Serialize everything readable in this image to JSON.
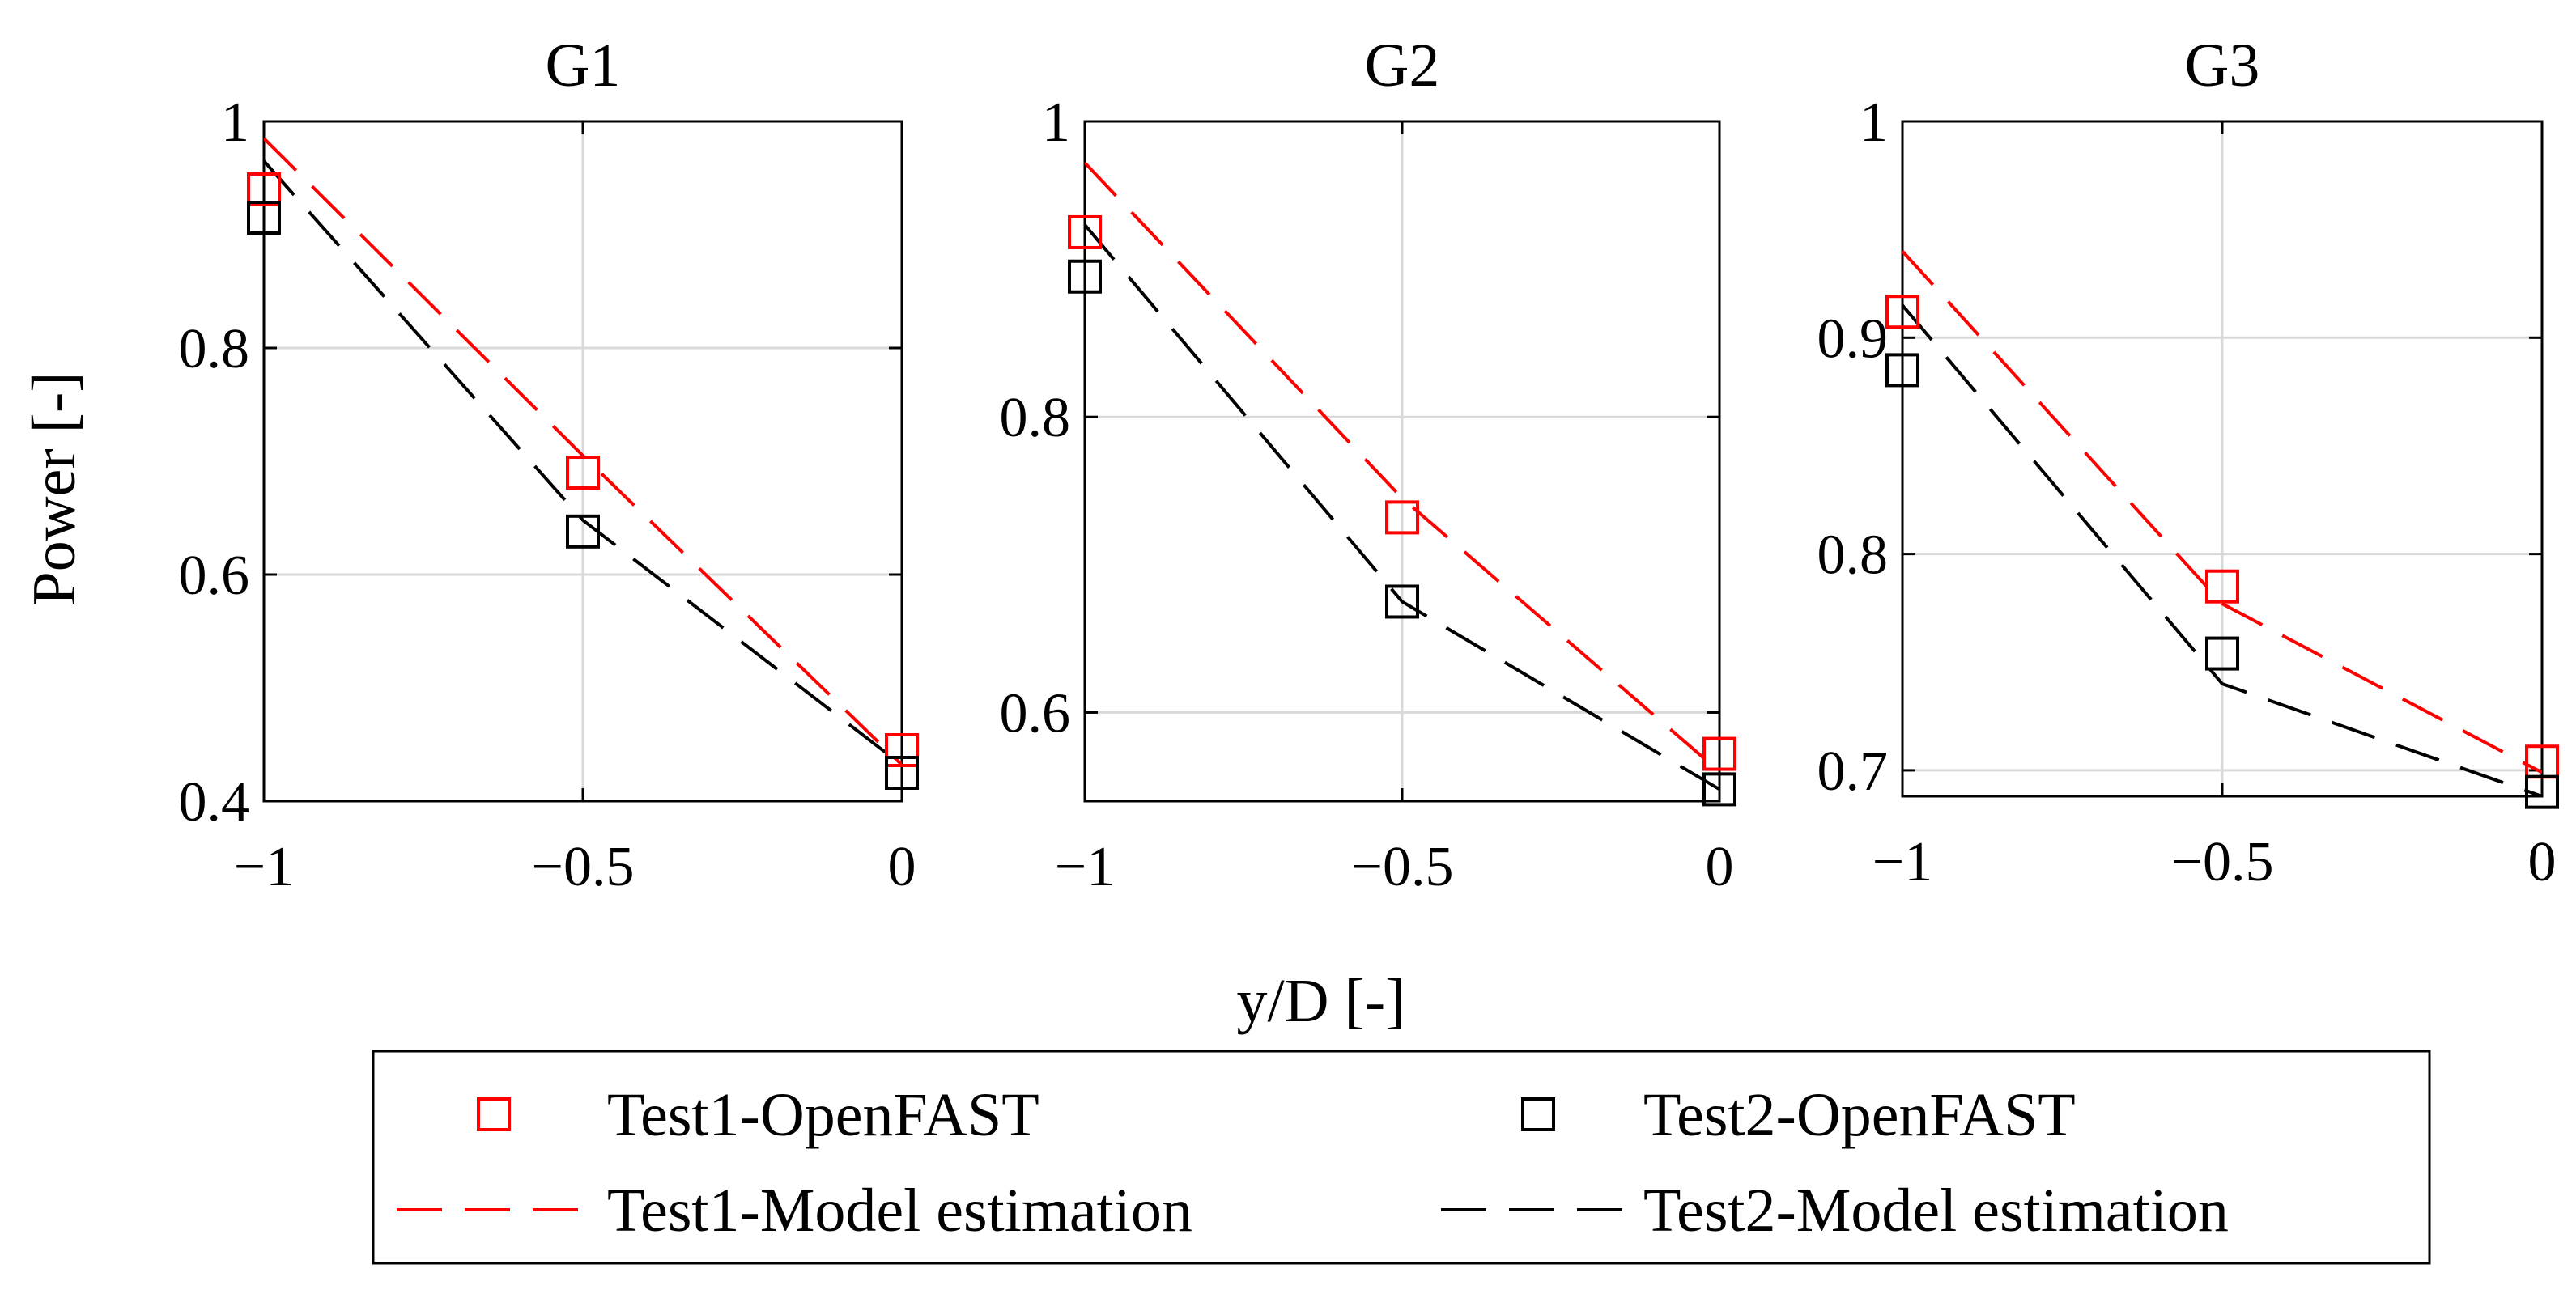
{
  "figure": {
    "ylabel": "Power [-]",
    "xlabel": "y/D [-]",
    "colors": {
      "test1": "#ff0000",
      "test2": "#000000",
      "grid": "#d9d9d9"
    }
  },
  "legend": {
    "items": [
      {
        "label": "Test1-OpenFAST",
        "series": "test1",
        "kind": "marker"
      },
      {
        "label": "Test2-OpenFAST",
        "series": "test2",
        "kind": "marker"
      },
      {
        "label": "Test1-Model estimation",
        "series": "test1",
        "kind": "line"
      },
      {
        "label": "Test2-Model estimation",
        "series": "test2",
        "kind": "line"
      }
    ]
  },
  "chart_data": [
    {
      "type": "line",
      "title": "G1",
      "xlim": [
        -1,
        0
      ],
      "ylim": [
        0.4,
        1.0
      ],
      "xticks": [
        -1,
        -0.5,
        0
      ],
      "xticklabels": [
        "−1",
        "−0.5",
        "0"
      ],
      "yticks": [
        0.4,
        0.6,
        0.8,
        1.0
      ],
      "yticklabels": [
        "0.4",
        "0.6",
        "0.8",
        "1"
      ],
      "grid": true,
      "series": [
        {
          "name": "Test1-OpenFAST",
          "kind": "marker",
          "color": "#ff0000",
          "x": [
            -1,
            -0.5,
            0
          ],
          "y": [
            0.94,
            0.69,
            0.445
          ]
        },
        {
          "name": "Test2-OpenFAST",
          "kind": "marker",
          "color": "#000000",
          "x": [
            -1,
            -0.5,
            0
          ],
          "y": [
            0.915,
            0.638,
            0.425
          ]
        },
        {
          "name": "Test1-Model estimation",
          "kind": "line",
          "color": "#ff0000",
          "x": [
            -1,
            -0.5,
            0
          ],
          "y": [
            0.985,
            0.705,
            0.432
          ]
        },
        {
          "name": "Test2-Model estimation",
          "kind": "line",
          "color": "#000000",
          "x": [
            -1,
            -0.5,
            0
          ],
          "y": [
            0.965,
            0.648,
            0.432
          ]
        }
      ]
    },
    {
      "type": "line",
      "title": "G2",
      "xlim": [
        -1,
        0
      ],
      "ylim": [
        0.54,
        1.0
      ],
      "xticks": [
        -1,
        -0.5,
        0
      ],
      "xticklabels": [
        "−1",
        "−0.5",
        "0"
      ],
      "yticks": [
        0.6,
        0.8,
        1.0
      ],
      "yticklabels": [
        "0.6",
        "0.8",
        "1"
      ],
      "grid": true,
      "series": [
        {
          "name": "Test1-OpenFAST",
          "kind": "marker",
          "color": "#ff0000",
          "x": [
            -1,
            -0.5,
            0
          ],
          "y": [
            0.925,
            0.732,
            0.572
          ]
        },
        {
          "name": "Test2-OpenFAST",
          "kind": "marker",
          "color": "#000000",
          "x": [
            -1,
            -0.5,
            0
          ],
          "y": [
            0.895,
            0.675,
            0.548
          ]
        },
        {
          "name": "Test1-Model estimation",
          "kind": "line",
          "color": "#ff0000",
          "x": [
            -1,
            -0.5,
            0
          ],
          "y": [
            0.972,
            0.745,
            0.56
          ]
        },
        {
          "name": "Test2-Model estimation",
          "kind": "line",
          "color": "#000000",
          "x": [
            -1,
            -0.5,
            0
          ],
          "y": [
            0.93,
            0.675,
            0.548
          ]
        }
      ]
    },
    {
      "type": "line",
      "title": "G3",
      "xlim": [
        -1,
        0
      ],
      "ylim": [
        0.688,
        1.0
      ],
      "xticks": [
        -1,
        -0.5,
        0
      ],
      "xticklabels": [
        "−1",
        "−0.5",
        "0"
      ],
      "yticks": [
        0.7,
        0.8,
        0.9,
        1.0
      ],
      "yticklabels": [
        "0.7",
        "0.8",
        "0.9",
        "1"
      ],
      "grid": true,
      "series": [
        {
          "name": "Test1-OpenFAST",
          "kind": "marker",
          "color": "#ff0000",
          "x": [
            -1,
            -0.5,
            0
          ],
          "y": [
            0.912,
            0.785,
            0.704
          ]
        },
        {
          "name": "Test2-OpenFAST",
          "kind": "marker",
          "color": "#000000",
          "x": [
            -1,
            -0.5,
            0
          ],
          "y": [
            0.885,
            0.754,
            0.69
          ]
        },
        {
          "name": "Test1-Model estimation",
          "kind": "line",
          "color": "#ff0000",
          "x": [
            -1,
            -0.5,
            0
          ],
          "y": [
            0.94,
            0.777,
            0.699
          ]
        },
        {
          "name": "Test2-Model estimation",
          "kind": "line",
          "color": "#000000",
          "x": [
            -1,
            -0.5,
            0
          ],
          "y": [
            0.915,
            0.74,
            0.688
          ]
        }
      ]
    }
  ]
}
